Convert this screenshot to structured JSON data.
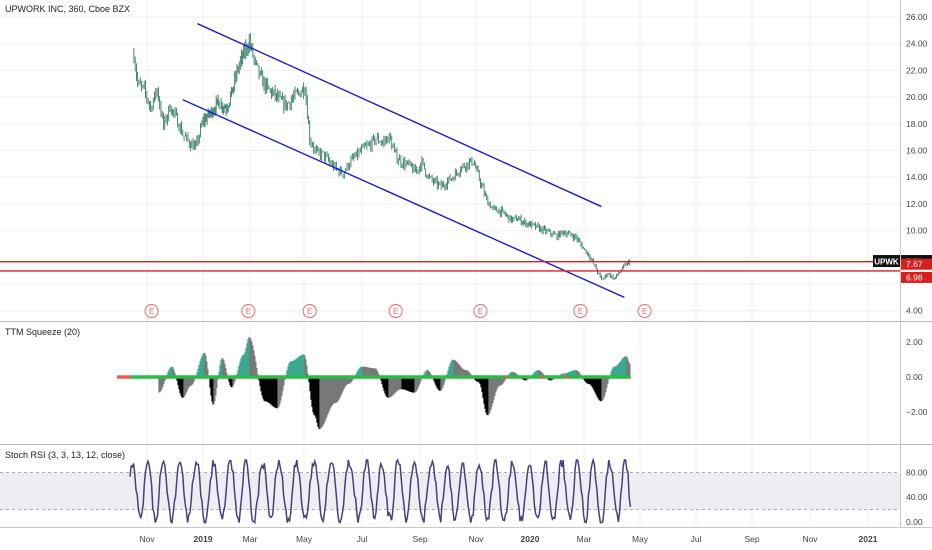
{
  "header": {
    "symbol_line": "UPWORK INC, 360, Cboe BZX",
    "squeeze_label": "TTM Squeeze (20)",
    "stoch_label": "Stoch RSI (3, 3, 13, 12, close)"
  },
  "colors": {
    "channel": "#1a1ad6",
    "support": "#d81e1e",
    "candles": "#1f6b57",
    "earnings": "#e86a6a",
    "squeeze_pos": "#3aa88f",
    "squeeze_neg": "#000000",
    "squeeze_fade": "#777777",
    "squeeze_zero_on": "#2fb94a",
    "squeeze_zero_off": "#f25757",
    "stoch_line": "#4a3f7a",
    "stoch_band": "#eeeef2"
  },
  "x_axis": {
    "ticks": [
      "Nov",
      "2019",
      "Mar",
      "May",
      "Jul",
      "Sep",
      "Nov",
      "2020",
      "Mar",
      "May",
      "Jul",
      "Sep",
      "Nov",
      "2021"
    ],
    "bold": [
      "2019",
      "2020",
      "2021"
    ]
  },
  "price_axis": {
    "ticks": [
      "26.00",
      "24.00",
      "22.00",
      "20.00",
      "18.00",
      "16.00",
      "14.00",
      "12.00",
      "10.00",
      "4.00"
    ],
    "badge_ticker": "UPWK",
    "badge_last": "7.72",
    "level_upper": "7.67",
    "level_lower": "6.98"
  },
  "squeeze_axis": {
    "ticks": [
      "2.00",
      "0.00",
      "−2.00"
    ]
  },
  "stoch_axis": {
    "ticks": [
      "80.00",
      "40.00",
      "0.00"
    ]
  },
  "earnings_label": "E",
  "chart_data": [
    {
      "type": "line",
      "title": "UPWORK INC, 360, Cboe BZX",
      "ylim": [
        4,
        26.5
      ],
      "price_series": [
        [
          "2018-10-18",
          23.2
        ],
        [
          "2018-10-22",
          21.0
        ],
        [
          "2018-10-29",
          20.5
        ],
        [
          "2018-11-05",
          19.2
        ],
        [
          "2018-11-12",
          20.6
        ],
        [
          "2018-11-19",
          17.8
        ],
        [
          "2018-11-26",
          19.3
        ],
        [
          "2018-12-03",
          18.4
        ],
        [
          "2018-12-10",
          17.2
        ],
        [
          "2018-12-17",
          16.6
        ],
        [
          "2018-12-24",
          16.2
        ],
        [
          "2019-01-01",
          18.2
        ],
        [
          "2019-01-10",
          18.8
        ],
        [
          "2019-01-20",
          19.6
        ],
        [
          "2019-01-30",
          19.2
        ],
        [
          "2019-02-07",
          20.5
        ],
        [
          "2019-02-14",
          22.2
        ],
        [
          "2019-02-21",
          23.2
        ],
        [
          "2019-02-28",
          24.2
        ],
        [
          "2019-03-07",
          22.4
        ],
        [
          "2019-03-14",
          21.3
        ],
        [
          "2019-03-21",
          20.6
        ],
        [
          "2019-03-28",
          20.2
        ],
        [
          "2019-04-04",
          19.7
        ],
        [
          "2019-04-11",
          19.4
        ],
        [
          "2019-04-18",
          19.9
        ],
        [
          "2019-04-25",
          20.3
        ],
        [
          "2019-05-02",
          20.8
        ],
        [
          "2019-05-07",
          16.9
        ],
        [
          "2019-05-14",
          15.8
        ],
        [
          "2019-05-21",
          15.7
        ],
        [
          "2019-05-28",
          15.1
        ],
        [
          "2019-06-04",
          14.6
        ],
        [
          "2019-06-11",
          14.3
        ],
        [
          "2019-06-18",
          15.1
        ],
        [
          "2019-06-25",
          15.6
        ],
        [
          "2019-07-02",
          16.1
        ],
        [
          "2019-07-09",
          16.4
        ],
        [
          "2019-07-16",
          16.9
        ],
        [
          "2019-07-23",
          16.6
        ],
        [
          "2019-07-30",
          17.0
        ],
        [
          "2019-08-06",
          15.6
        ],
        [
          "2019-08-13",
          15.1
        ],
        [
          "2019-08-20",
          14.9
        ],
        [
          "2019-08-27",
          14.4
        ],
        [
          "2019-09-03",
          15.1
        ],
        [
          "2019-09-10",
          14.0
        ],
        [
          "2019-09-17",
          13.6
        ],
        [
          "2019-09-24",
          13.3
        ],
        [
          "2019-10-01",
          13.7
        ],
        [
          "2019-10-08",
          14.1
        ],
        [
          "2019-10-15",
          14.7
        ],
        [
          "2019-10-22",
          15.0
        ],
        [
          "2019-10-29",
          15.2
        ],
        [
          "2019-11-06",
          13.6
        ],
        [
          "2019-11-13",
          12.3
        ],
        [
          "2019-11-20",
          11.6
        ],
        [
          "2019-11-27",
          11.5
        ],
        [
          "2019-12-04",
          11.2
        ],
        [
          "2019-12-11",
          10.8
        ],
        [
          "2019-12-18",
          10.9
        ],
        [
          "2019-12-26",
          10.6
        ],
        [
          "2020-01-03",
          10.4
        ],
        [
          "2020-01-10",
          10.2
        ],
        [
          "2020-01-17",
          10.0
        ],
        [
          "2020-01-24",
          9.8
        ],
        [
          "2020-01-31",
          9.6
        ],
        [
          "2020-02-07",
          9.9
        ],
        [
          "2020-02-14",
          9.7
        ],
        [
          "2020-02-21",
          9.5
        ],
        [
          "2020-02-28",
          8.8
        ],
        [
          "2020-03-06",
          8.2
        ],
        [
          "2020-03-13",
          7.3
        ],
        [
          "2020-03-20",
          6.3
        ],
        [
          "2020-03-27",
          6.8
        ],
        [
          "2020-04-03",
          6.4
        ],
        [
          "2020-04-09",
          6.9
        ],
        [
          "2020-04-16",
          7.5
        ],
        [
          "2020-04-21",
          7.72
        ]
      ],
      "channel_upper": [
        [
          "2018-12-26",
          25.5
        ],
        [
          "2020-03-20",
          11.8
        ]
      ],
      "channel_lower": [
        [
          "2018-12-10",
          19.8
        ],
        [
          "2020-04-14",
          5.0
        ]
      ],
      "support_levels": [
        7.67,
        6.98
      ],
      "earnings_dates": [
        "2018-11-06",
        "2019-02-27",
        "2019-05-07",
        "2019-08-06",
        "2019-11-06",
        "2020-02-26",
        "2020-05-06"
      ]
    },
    {
      "type": "area",
      "title": "TTM Squeeze (20)",
      "ylim": [
        -3.2,
        3.2
      ],
      "momentum": [
        [
          "2018-11-14",
          -0.9
        ],
        [
          "2018-11-28",
          0.6
        ],
        [
          "2018-12-10",
          -1.2
        ],
        [
          "2018-12-19",
          -0.5
        ],
        [
          "2019-01-03",
          1.4
        ],
        [
          "2019-01-14",
          -1.6
        ],
        [
          "2019-01-25",
          1.1
        ],
        [
          "2019-02-06",
          -0.6
        ],
        [
          "2019-02-21",
          1.3
        ],
        [
          "2019-02-28",
          2.3
        ],
        [
          "2019-03-18",
          -1.4
        ],
        [
          "2019-04-01",
          -1.8
        ],
        [
          "2019-04-16",
          0.9
        ],
        [
          "2019-05-01",
          1.3
        ],
        [
          "2019-05-12",
          -2.2
        ],
        [
          "2019-05-17",
          -3.0
        ],
        [
          "2019-06-03",
          -1.5
        ],
        [
          "2019-06-17",
          -0.4
        ],
        [
          "2019-07-01",
          0.6
        ],
        [
          "2019-07-15",
          0.5
        ],
        [
          "2019-07-29",
          -1.2
        ],
        [
          "2019-08-12",
          -0.7
        ],
        [
          "2019-08-26",
          -0.9
        ],
        [
          "2019-09-09",
          0.4
        ],
        [
          "2019-09-23",
          -0.8
        ],
        [
          "2019-10-07",
          1.0
        ],
        [
          "2019-10-21",
          0.4
        ],
        [
          "2019-11-04",
          -0.3
        ],
        [
          "2019-11-14",
          -2.2
        ],
        [
          "2019-11-28",
          -0.5
        ],
        [
          "2019-12-12",
          0.3
        ],
        [
          "2019-12-27",
          -0.2
        ],
        [
          "2020-01-10",
          0.4
        ],
        [
          "2020-01-24",
          -0.2
        ],
        [
          "2020-02-07",
          0.2
        ],
        [
          "2020-02-21",
          0.4
        ],
        [
          "2020-03-06",
          -0.4
        ],
        [
          "2020-03-20",
          -1.4
        ],
        [
          "2020-04-03",
          0.6
        ],
        [
          "2020-04-16",
          1.2
        ],
        [
          "2020-04-21",
          0.7
        ]
      ]
    },
    {
      "type": "line",
      "title": "Stoch RSI (3, 3, 13, 12, close)",
      "ylim": [
        0,
        100
      ],
      "bands": [
        20,
        80
      ]
    }
  ]
}
